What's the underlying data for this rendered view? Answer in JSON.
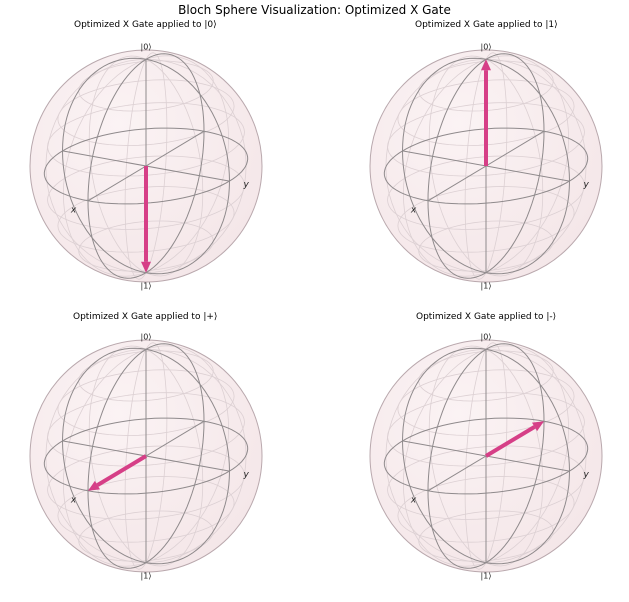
{
  "figure": {
    "suptitle": "Bloch Sphere Visualization: Optimized X Gate"
  },
  "colors": {
    "sphere_fill": "#f4e6e8",
    "sphere_edge": "#b9a8ad",
    "wire": "#8f8a8c",
    "faint_wire": "#dcd0d3",
    "vector": "#d63f87"
  },
  "axis_labels": {
    "north": "|0⟩",
    "south": "|1⟩",
    "x": "x",
    "y": "y"
  },
  "panels": [
    {
      "title": "Optimized X Gate applied to |0⟩",
      "state": "|1⟩",
      "vector": {
        "x": 0,
        "y": 0,
        "z": -1
      }
    },
    {
      "title": "Optimized X Gate applied to |1⟩",
      "state": "|0⟩",
      "vector": {
        "x": 0,
        "y": 0,
        "z": 1
      }
    },
    {
      "title": "Optimized X Gate applied to |+⟩",
      "state": "|+⟩",
      "vector": {
        "x": 1,
        "y": 0,
        "z": 0
      }
    },
    {
      "title": "Optimized X Gate applied to |-⟩",
      "state": "|-⟩",
      "vector": {
        "x": -1,
        "y": 0,
        "z": 0
      }
    }
  ]
}
